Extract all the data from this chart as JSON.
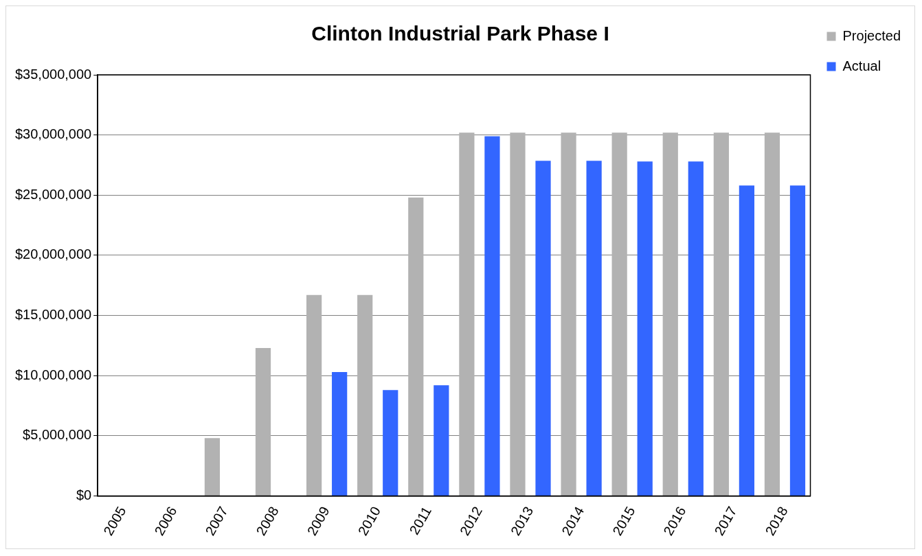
{
  "chart_data": {
    "type": "bar",
    "title": "Clinton Industrial Park Phase I",
    "categories": [
      "2005",
      "2006",
      "2007",
      "2008",
      "2009",
      "2010",
      "2011",
      "2012",
      "2013",
      "2014",
      "2015",
      "2016",
      "2017",
      "2018"
    ],
    "series": [
      {
        "name": "Projected",
        "color": "#b2b2b2",
        "values": [
          0,
          0,
          4800000,
          12300000,
          16700000,
          16700000,
          24800000,
          30200000,
          30200000,
          30200000,
          30200000,
          30200000,
          30200000,
          30200000
        ]
      },
      {
        "name": "Actual",
        "color": "#3366ff",
        "values": [
          0,
          0,
          0,
          0,
          10300000,
          8800000,
          9200000,
          29900000,
          27850000,
          27850000,
          27800000,
          27800000,
          25800000,
          25800000
        ]
      }
    ],
    "ylim": [
      0,
      35000000
    ],
    "yticks": [
      {
        "value": 0,
        "label": "$0"
      },
      {
        "value": 5000000,
        "label": "$5,000,000"
      },
      {
        "value": 10000000,
        "label": "$10,000,000"
      },
      {
        "value": 15000000,
        "label": "$15,000,000"
      },
      {
        "value": 20000000,
        "label": "$20,000,000"
      },
      {
        "value": 25000000,
        "label": "$25,000,000"
      },
      {
        "value": 30000000,
        "label": "$30,000,000"
      },
      {
        "value": 35000000,
        "label": "$35,000,000"
      }
    ],
    "grid": "y",
    "legend": "top right"
  }
}
